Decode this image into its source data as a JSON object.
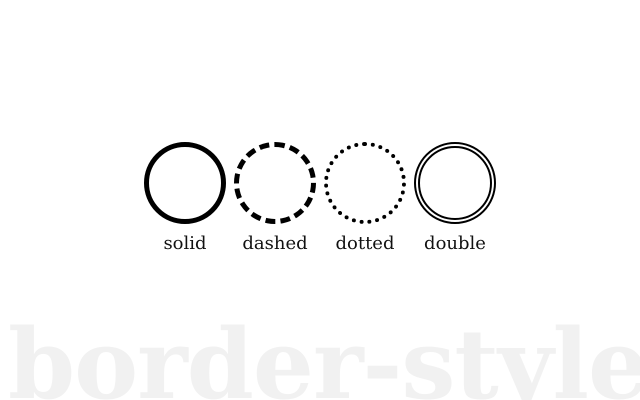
{
  "items": [
    {
      "label": "solid",
      "style": "solid"
    },
    {
      "label": "dashed",
      "style": "dashed"
    },
    {
      "label": "dotted",
      "style": "dotted"
    },
    {
      "label": "double",
      "style": "double"
    }
  ],
  "watermark": "border-style",
  "colors": {
    "circle_border": "#000000",
    "label_text": "#111111",
    "watermark_text": "#f1f1f1",
    "background": "#ffffff"
  }
}
